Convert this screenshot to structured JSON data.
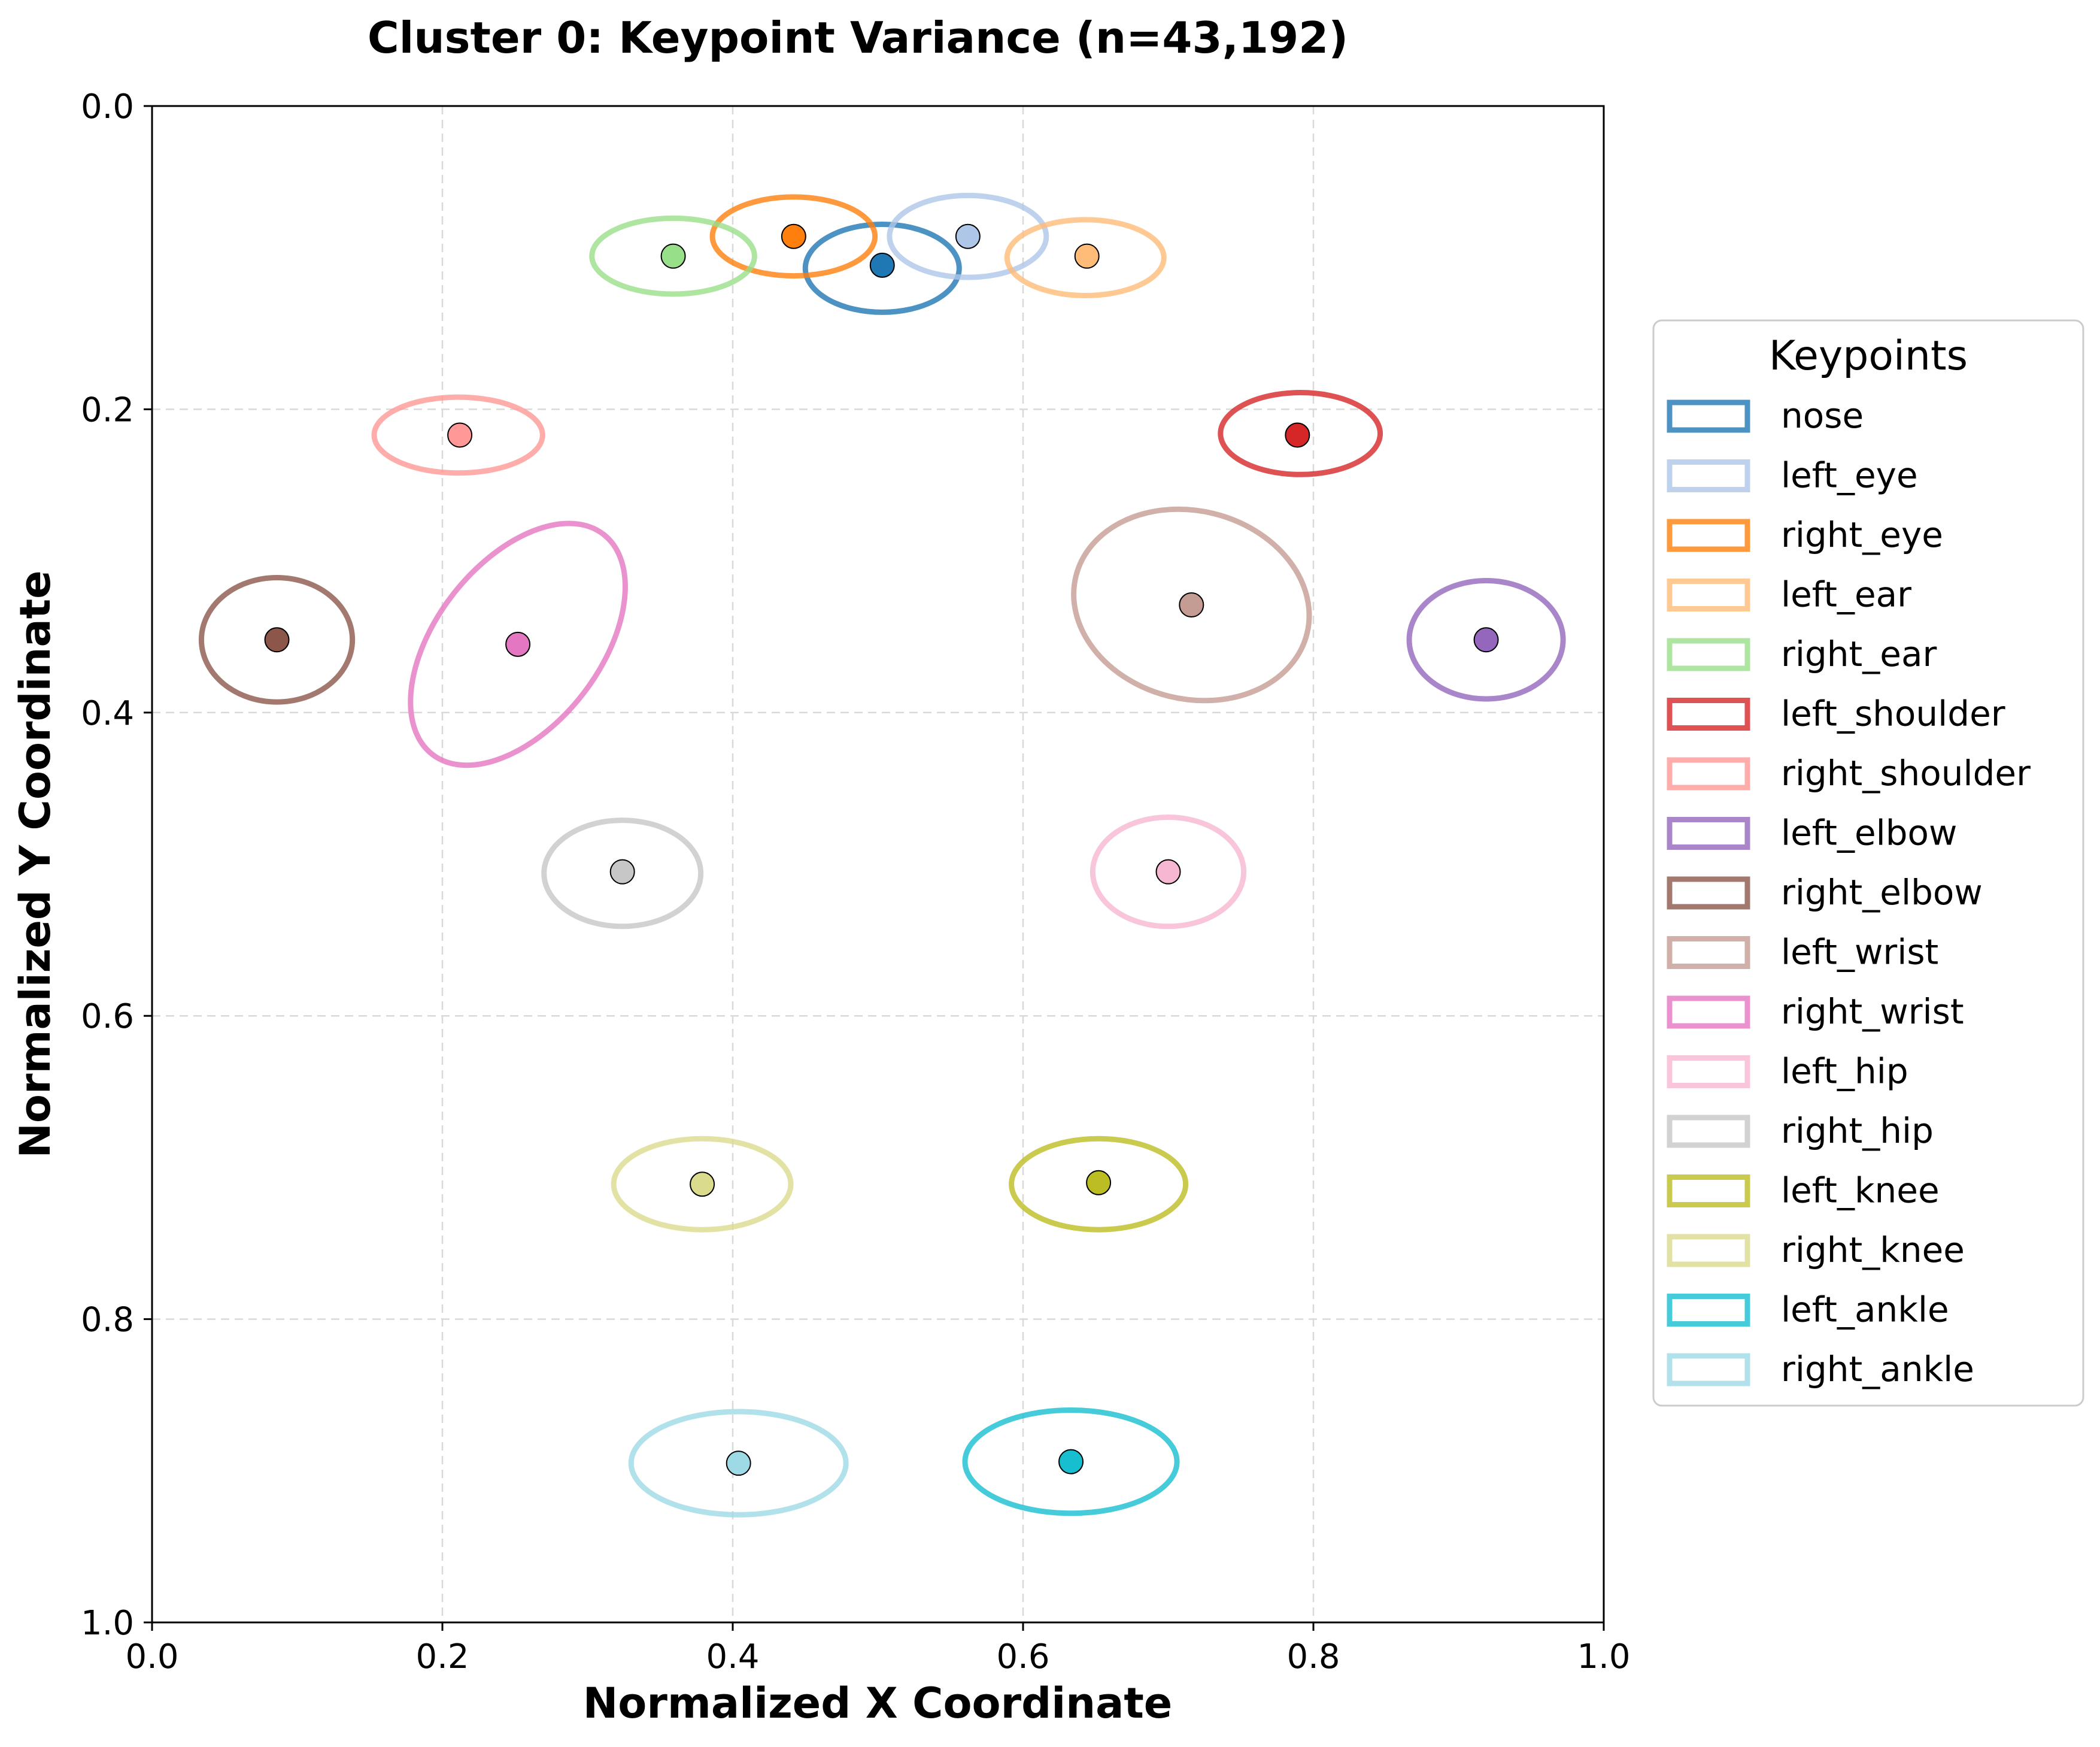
{
  "chart_data": {
    "type": "scatter",
    "title": "Cluster 0: Keypoint Variance (n=43,192)",
    "xlabel": "Normalized X Coordinate",
    "ylabel": "Normalized Y Coordinate",
    "xlim": [
      0.0,
      1.0
    ],
    "ylim": [
      1.0,
      0.0
    ],
    "y_inverted": true,
    "grid": true,
    "x_ticks": [
      "0.0",
      "0.2",
      "0.4",
      "0.6",
      "0.8",
      "1.0"
    ],
    "y_ticks": [
      "0.0",
      "0.2",
      "0.4",
      "0.6",
      "0.8",
      "1.0"
    ],
    "legend": {
      "title": "Keypoints",
      "placement": "center-right, outside plot"
    },
    "series": [
      {
        "name": "nose",
        "color": "#1f77b4",
        "x": 0.503,
        "y": 0.105,
        "ellipse": {
          "cx": 0.503,
          "cy": 0.107,
          "rx": 0.053,
          "ry": 0.029,
          "angle": 0
        }
      },
      {
        "name": "left_eye",
        "color": "#aec7e8",
        "x": 0.562,
        "y": 0.086,
        "ellipse": {
          "cx": 0.562,
          "cy": 0.086,
          "rx": 0.054,
          "ry": 0.027,
          "angle": 0
        }
      },
      {
        "name": "right_eye",
        "color": "#ff7f0e",
        "x": 0.442,
        "y": 0.086,
        "ellipse": {
          "cx": 0.442,
          "cy": 0.086,
          "rx": 0.056,
          "ry": 0.026,
          "angle": 0
        }
      },
      {
        "name": "left_ear",
        "color": "#ffbb78",
        "x": 0.644,
        "y": 0.099,
        "ellipse": {
          "cx": 0.643,
          "cy": 0.1,
          "rx": 0.054,
          "ry": 0.025,
          "angle": 0
        }
      },
      {
        "name": "right_ear",
        "color": "#98df8a",
        "x": 0.359,
        "y": 0.099,
        "ellipse": {
          "cx": 0.359,
          "cy": 0.099,
          "rx": 0.056,
          "ry": 0.025,
          "angle": 0
        }
      },
      {
        "name": "left_shoulder",
        "color": "#d62728",
        "x": 0.789,
        "y": 0.217,
        "ellipse": {
          "cx": 0.791,
          "cy": 0.216,
          "rx": 0.055,
          "ry": 0.027,
          "angle": 0
        }
      },
      {
        "name": "right_shoulder",
        "color": "#ff9896",
        "x": 0.212,
        "y": 0.217,
        "ellipse": {
          "cx": 0.211,
          "cy": 0.217,
          "rx": 0.058,
          "ry": 0.025,
          "angle": 0
        }
      },
      {
        "name": "left_elbow",
        "color": "#9467bd",
        "x": 0.919,
        "y": 0.352,
        "ellipse": {
          "cx": 0.919,
          "cy": 0.352,
          "rx": 0.053,
          "ry": 0.039,
          "angle": 0
        }
      },
      {
        "name": "right_elbow",
        "color": "#8c564b",
        "x": 0.086,
        "y": 0.352,
        "ellipse": {
          "cx": 0.086,
          "cy": 0.352,
          "rx": 0.052,
          "ry": 0.041,
          "angle": 0
        }
      },
      {
        "name": "left_wrist",
        "color": "#c49c94",
        "x": 0.716,
        "y": 0.329,
        "ellipse": {
          "cx": 0.716,
          "cy": 0.329,
          "rx": 0.082,
          "ry": 0.062,
          "angle": 14
        }
      },
      {
        "name": "right_wrist",
        "color": "#e377c2",
        "x": 0.252,
        "y": 0.355,
        "ellipse": {
          "cx": 0.252,
          "cy": 0.355,
          "rx": 0.096,
          "ry": 0.054,
          "angle": -52
        }
      },
      {
        "name": "left_hip",
        "color": "#f7b6d2",
        "x": 0.7,
        "y": 0.505,
        "ellipse": {
          "cx": 0.7,
          "cy": 0.505,
          "rx": 0.052,
          "ry": 0.036,
          "angle": 0
        }
      },
      {
        "name": "right_hip",
        "color": "#c7c7c7",
        "x": 0.324,
        "y": 0.505,
        "ellipse": {
          "cx": 0.324,
          "cy": 0.506,
          "rx": 0.054,
          "ry": 0.035,
          "angle": 0
        }
      },
      {
        "name": "left_knee",
        "color": "#bcbd22",
        "x": 0.652,
        "y": 0.71,
        "ellipse": {
          "cx": 0.652,
          "cy": 0.711,
          "rx": 0.06,
          "ry": 0.03,
          "angle": 0
        }
      },
      {
        "name": "right_knee",
        "color": "#dbdb8d",
        "x": 0.379,
        "y": 0.711,
        "ellipse": {
          "cx": 0.379,
          "cy": 0.711,
          "rx": 0.061,
          "ry": 0.03,
          "angle": 0
        }
      },
      {
        "name": "left_ankle",
        "color": "#17becf",
        "x": 0.633,
        "y": 0.894,
        "ellipse": {
          "cx": 0.633,
          "cy": 0.894,
          "rx": 0.073,
          "ry": 0.034,
          "angle": 0
        }
      },
      {
        "name": "right_ankle",
        "color": "#9edae5",
        "x": 0.404,
        "y": 0.895,
        "ellipse": {
          "cx": 0.404,
          "cy": 0.895,
          "rx": 0.074,
          "ry": 0.034,
          "angle": 0
        }
      }
    ]
  }
}
